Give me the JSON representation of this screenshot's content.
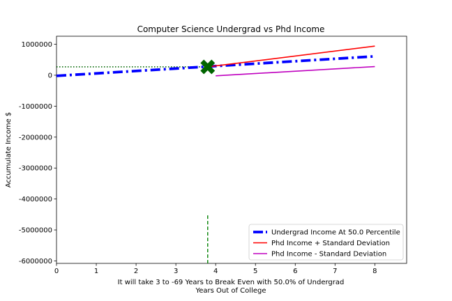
{
  "chart_data": {
    "type": "line",
    "title": "Computer Science Undergrad vs Phd Income",
    "xlabel_line1": "It will take 3 to -69 Years to Break Even with 50.0% of Undergrad",
    "xlabel_line2": "Years Out of College",
    "ylabel": "Accumulate Income $",
    "xlim": [
      0,
      8.8
    ],
    "ylim": [
      -6080000,
      1260000
    ],
    "xticks": [
      0,
      1,
      2,
      3,
      4,
      5,
      6,
      7,
      8
    ],
    "yticks": [
      1000000,
      0,
      -1000000,
      -2000000,
      -3000000,
      -4000000,
      -5000000,
      -6000000
    ],
    "ytick_labels": [
      "1000000",
      "0",
      "-1000000",
      "-2000000",
      "-3000000",
      "-4000000",
      "-5000000",
      "-6000000"
    ],
    "grid": false,
    "legend_position": "lower-right",
    "series": [
      {
        "name": "Undergrad Income At 50.0 Percentile",
        "color": "#0000ff",
        "style": "dashdot",
        "width": "thick",
        "x": [
          0,
          8
        ],
        "y": [
          -20000,
          610000
        ]
      },
      {
        "name": "Phd Income + Standard Deviation",
        "color": "#ff0000",
        "style": "solid",
        "x": [
          3.8,
          8
        ],
        "y": [
          270000,
          940000
        ]
      },
      {
        "name": "Phd Income - Standard Deviation",
        "color": "#bf00bf",
        "style": "solid",
        "x": [
          4,
          8
        ],
        "y": [
          -20000,
          280000
        ]
      }
    ],
    "annotations": {
      "break_even_marker": {
        "x": 3.8,
        "y": 270000,
        "color": "#006400",
        "marker": "X"
      },
      "horizontal_dotted": {
        "x": [
          0,
          3.8
        ],
        "y": 270000,
        "color": "#006400"
      },
      "vertical_dashed": {
        "x": 3.8,
        "y": [
          -6080000,
          -4530000
        ],
        "color": "#008000"
      }
    }
  }
}
